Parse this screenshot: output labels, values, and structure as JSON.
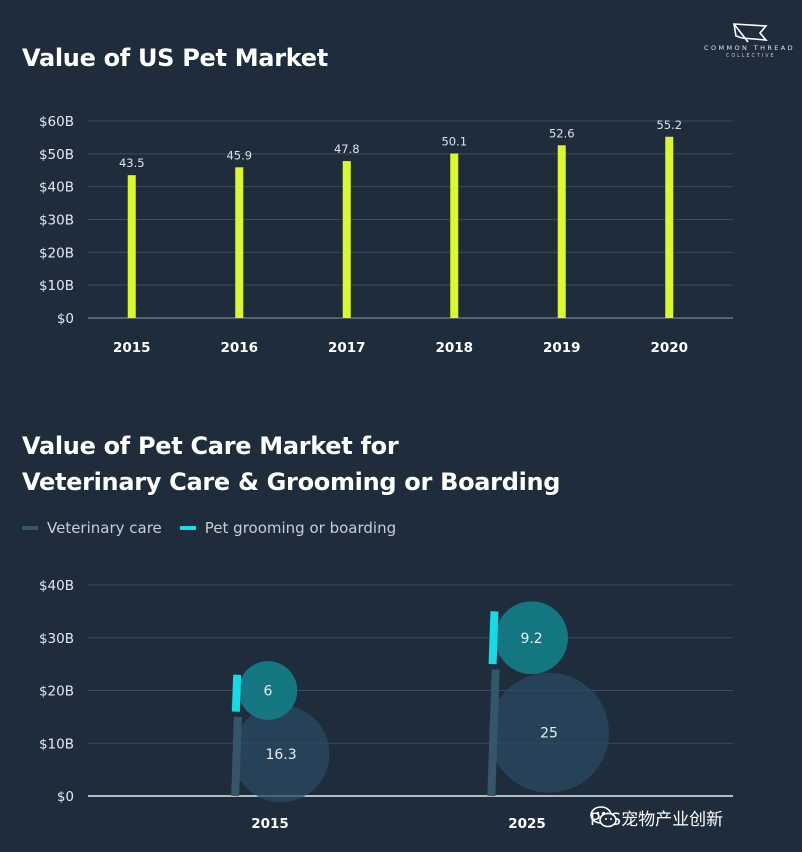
{
  "logo": {
    "name": "COMMON THREAD",
    "sub": "COLLECTIVE"
  },
  "watermark": {
    "text": "PIIS宠物产业创新",
    "icon": "wechat-icon"
  },
  "colors": {
    "background": "#1e2c3c",
    "bar": "#dbf92a",
    "vet": "#34566a",
    "groom": "#15dbe8",
    "vet_bubble": "#2b4a62",
    "groom_bubble": "#147a84",
    "grid": "#3b4c5e",
    "axis_text": "#e6e9ee"
  },
  "chart_data": [
    {
      "type": "bar",
      "title": "Value of US Pet Market",
      "xlabel": "",
      "ylabel": "",
      "categories": [
        "2015",
        "2016",
        "2017",
        "2018",
        "2019",
        "2020"
      ],
      "values": [
        43.5,
        45.9,
        47.8,
        50.1,
        52.6,
        55.2
      ],
      "value_labels": [
        "43.5",
        "45.9",
        "47.8",
        "50.1",
        "52.6",
        "55.2"
      ],
      "ylim": [
        0,
        60
      ],
      "yticks": [
        0,
        10,
        20,
        30,
        40,
        50,
        60
      ],
      "ytick_labels": [
        "$0",
        "$10B",
        "$20B",
        "$30B",
        "$40B",
        "$50B",
        "$60B"
      ],
      "grid": true,
      "legend": "none"
    },
    {
      "type": "scatter",
      "title_lines": [
        "Value of Pet Care Market for",
        "Veterinary Care & Grooming or Boarding"
      ],
      "categories": [
        "2015",
        "2025"
      ],
      "series": [
        {
          "name": "Veterinary care",
          "values": [
            16.3,
            25
          ],
          "value_labels": [
            "16.3",
            "25"
          ],
          "bar_range": [
            [
              0,
              15
            ],
            [
              0,
              24
            ]
          ]
        },
        {
          "name": "Pet grooming or boarding",
          "values": [
            6,
            9.2
          ],
          "value_labels": [
            "6",
            "9.2"
          ],
          "bar_range": [
            [
              16,
              23
            ],
            [
              25,
              35
            ]
          ]
        }
      ],
      "bubble_center_y": [
        [
          8,
          20
        ],
        [
          12,
          30
        ]
      ],
      "ylim": [
        0,
        40
      ],
      "yticks": [
        0,
        10,
        20,
        30,
        40
      ],
      "ytick_labels": [
        "$0",
        "$10B",
        "$20B",
        "$30B",
        "$40B"
      ],
      "grid": true,
      "legend": "top-left"
    }
  ]
}
